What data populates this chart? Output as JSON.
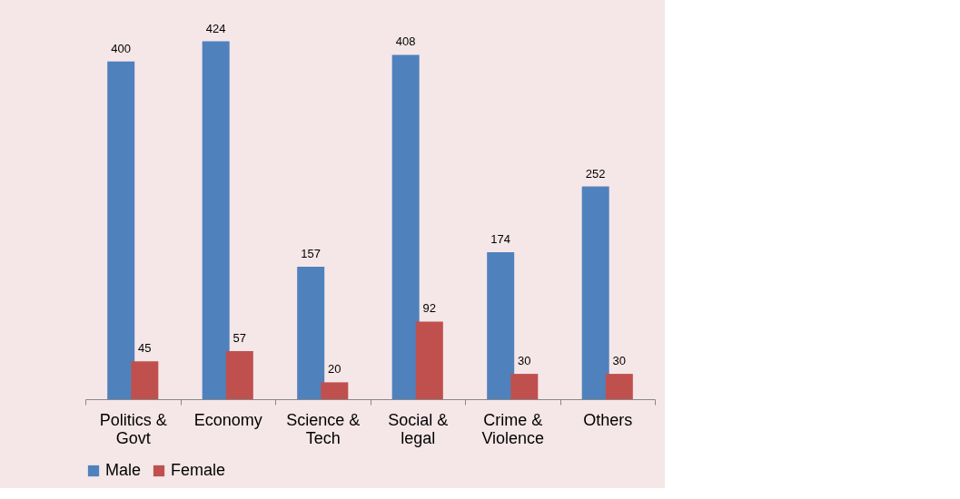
{
  "chart_data": {
    "type": "bar",
    "categories": [
      "Politics & Govt",
      "Economy",
      "Science & Tech",
      "Social & legal",
      "Crime & Violence",
      "Others"
    ],
    "series": [
      {
        "name": "Male",
        "color": "#4f81bd",
        "values": [
          400,
          424,
          157,
          408,
          174,
          252
        ]
      },
      {
        "name": "Female",
        "color": "#c0504d",
        "values": [
          45,
          57,
          20,
          92,
          30,
          30
        ]
      }
    ],
    "data_labels": true,
    "legend": "bottom",
    "grid": false
  }
}
